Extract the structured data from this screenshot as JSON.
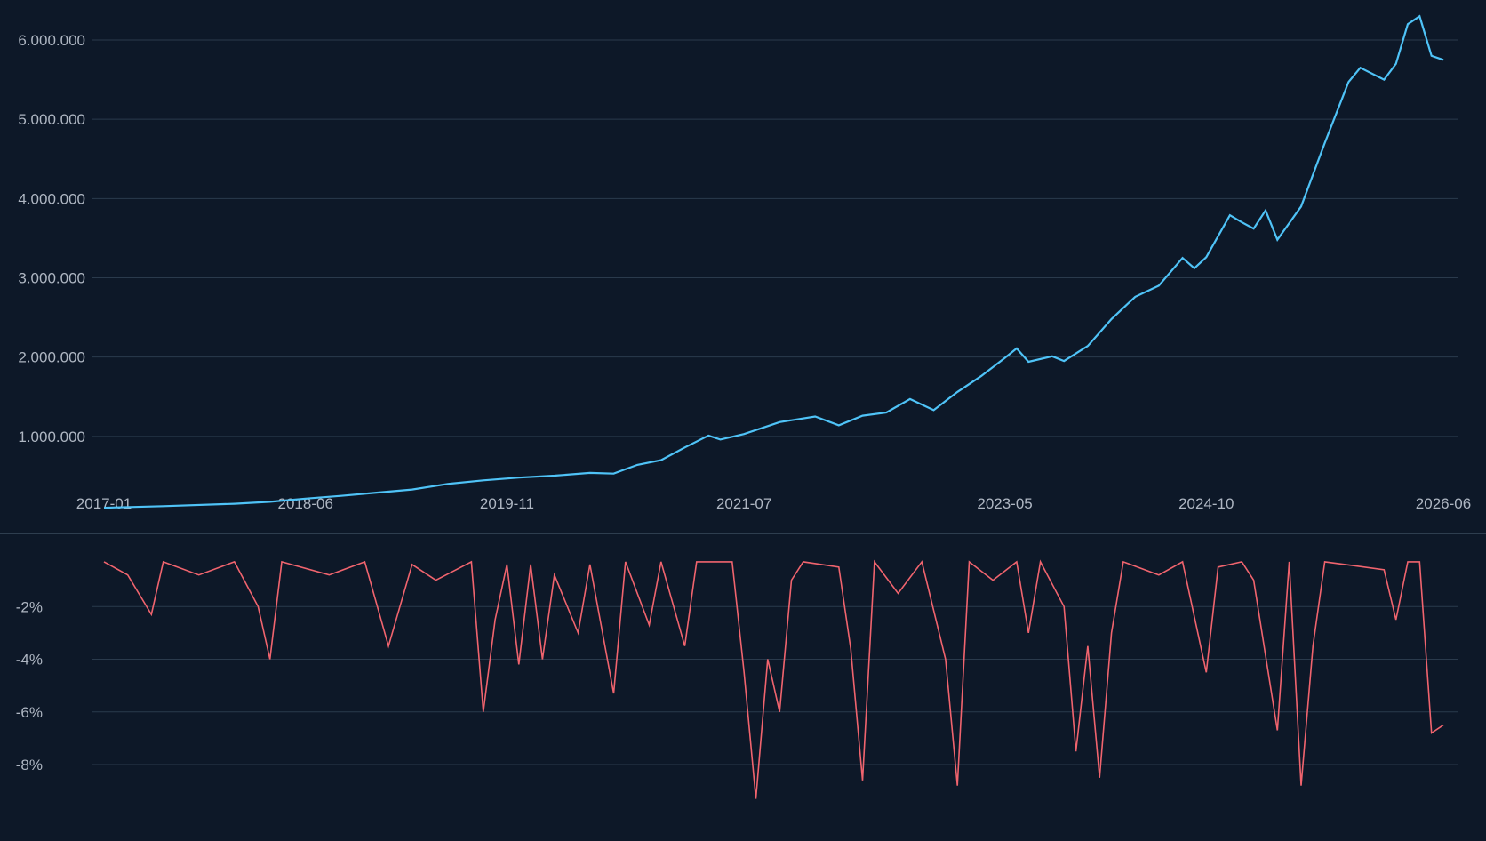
{
  "colors": {
    "background": "#0d1828",
    "grid": "#2a3a4c",
    "tick_text": "#aeb6c2",
    "equity_line": "#4fc3f7",
    "drawdown_line": "#f0646e"
  },
  "chart_data": [
    {
      "type": "line",
      "title": "",
      "xlabel": "",
      "ylabel": "",
      "legend": "none",
      "grid": "horizontal",
      "xlim": [
        "2017-01",
        "2026-06"
      ],
      "ylim": [
        0,
        6300000
      ],
      "x_ticks": [
        "2017-01",
        "2018-06",
        "2019-11",
        "2021-07",
        "2023-05",
        "2024-10",
        "2026-06"
      ],
      "y_ticks": [
        {
          "value": 1000000,
          "label": "1.000.000"
        },
        {
          "value": 2000000,
          "label": "2.000.000"
        },
        {
          "value": 3000000,
          "label": "3.000.000"
        },
        {
          "value": 4000000,
          "label": "4.000.000"
        },
        {
          "value": 5000000,
          "label": "5.000.000"
        },
        {
          "value": 6000000,
          "label": "6.000.000"
        }
      ],
      "series": [
        {
          "color": "#4fc3f7",
          "points": [
            [
              "2017-01",
              100000
            ],
            [
              "2017-06",
              120000
            ],
            [
              "2017-12",
              150000
            ],
            [
              "2018-03",
              175000
            ],
            [
              "2018-06",
              215000
            ],
            [
              "2018-09",
              250000
            ],
            [
              "2018-12",
              290000
            ],
            [
              "2019-03",
              330000
            ],
            [
              "2019-06",
              400000
            ],
            [
              "2019-09",
              445000
            ],
            [
              "2019-12",
              480000
            ],
            [
              "2020-03",
              505000
            ],
            [
              "2020-06",
              540000
            ],
            [
              "2020-08",
              530000
            ],
            [
              "2020-10",
              640000
            ],
            [
              "2020-12",
              700000
            ],
            [
              "2021-02",
              860000
            ],
            [
              "2021-04",
              1010000
            ],
            [
              "2021-05",
              960000
            ],
            [
              "2021-07",
              1030000
            ],
            [
              "2021-10",
              1180000
            ],
            [
              "2022-01",
              1250000
            ],
            [
              "2022-03",
              1140000
            ],
            [
              "2022-05",
              1260000
            ],
            [
              "2022-07",
              1300000
            ],
            [
              "2022-09",
              1470000
            ],
            [
              "2022-11",
              1330000
            ],
            [
              "2023-01",
              1560000
            ],
            [
              "2023-03",
              1760000
            ],
            [
              "2023-05",
              1990000
            ],
            [
              "2023-06",
              2110000
            ],
            [
              "2023-07",
              1940000
            ],
            [
              "2023-09",
              2010000
            ],
            [
              "2023-10",
              1950000
            ],
            [
              "2023-12",
              2140000
            ],
            [
              "2024-02",
              2480000
            ],
            [
              "2024-04",
              2760000
            ],
            [
              "2024-06",
              2900000
            ],
            [
              "2024-08",
              3250000
            ],
            [
              "2024-09",
              3120000
            ],
            [
              "2024-10",
              3260000
            ],
            [
              "2024-12",
              3790000
            ],
            [
              "2025-01",
              3700000
            ],
            [
              "2025-02",
              3620000
            ],
            [
              "2025-03",
              3850000
            ],
            [
              "2025-04",
              3480000
            ],
            [
              "2025-06",
              3900000
            ],
            [
              "2025-08",
              4700000
            ],
            [
              "2025-10",
              5470000
            ],
            [
              "2025-11",
              5650000
            ],
            [
              "2026-01",
              5500000
            ],
            [
              "2026-02",
              5700000
            ],
            [
              "2026-03",
              6200000
            ],
            [
              "2026-04",
              6300000
            ],
            [
              "2026-05",
              5800000
            ],
            [
              "2026-06",
              5750000
            ]
          ]
        }
      ]
    },
    {
      "type": "line",
      "title": "",
      "xlabel": "",
      "ylabel": "",
      "legend": "none",
      "grid": "horizontal",
      "xlim": [
        "2017-01",
        "2026-06"
      ],
      "ylim": [
        -10,
        0
      ],
      "y_ticks": [
        {
          "value": -2,
          "label": "-2%"
        },
        {
          "value": -4,
          "label": "-4%"
        },
        {
          "value": -6,
          "label": "-6%"
        },
        {
          "value": -8,
          "label": "-8%"
        }
      ],
      "series": [
        {
          "color": "#f0646e",
          "points": [
            [
              "2017-01",
              -0.3
            ],
            [
              "2017-03",
              -0.8
            ],
            [
              "2017-05",
              -2.3
            ],
            [
              "2017-06",
              -0.3
            ],
            [
              "2017-09",
              -0.8
            ],
            [
              "2017-12",
              -0.3
            ],
            [
              "2018-02",
              -2.0
            ],
            [
              "2018-03",
              -4.0
            ],
            [
              "2018-04",
              -0.3
            ],
            [
              "2018-08",
              -0.8
            ],
            [
              "2018-11",
              -0.3
            ],
            [
              "2019-01",
              -3.5
            ],
            [
              "2019-03",
              -0.4
            ],
            [
              "2019-05",
              -1.0
            ],
            [
              "2019-08",
              -0.3
            ],
            [
              "2019-09",
              -6.0
            ],
            [
              "2019-10",
              -2.5
            ],
            [
              "2019-11",
              -0.4
            ],
            [
              "2019-12",
              -4.2
            ],
            [
              "2020-01",
              -0.4
            ],
            [
              "2020-02",
              -4.0
            ],
            [
              "2020-03",
              -0.8
            ],
            [
              "2020-05",
              -3.0
            ],
            [
              "2020-06",
              -0.4
            ],
            [
              "2020-08",
              -5.3
            ],
            [
              "2020-09",
              -0.3
            ],
            [
              "2020-11",
              -2.7
            ],
            [
              "2020-12",
              -0.3
            ],
            [
              "2021-02",
              -3.5
            ],
            [
              "2021-03",
              -0.3
            ],
            [
              "2021-06",
              -0.3
            ],
            [
              "2021-07",
              -4.5
            ],
            [
              "2021-08",
              -9.3
            ],
            [
              "2021-09",
              -4.0
            ],
            [
              "2021-10",
              -6.0
            ],
            [
              "2021-11",
              -1.0
            ],
            [
              "2021-12",
              -0.3
            ],
            [
              "2022-03",
              -0.5
            ],
            [
              "2022-04",
              -3.6
            ],
            [
              "2022-05",
              -8.6
            ],
            [
              "2022-06",
              -0.3
            ],
            [
              "2022-08",
              -1.5
            ],
            [
              "2022-10",
              -0.3
            ],
            [
              "2022-12",
              -4.0
            ],
            [
              "2023-01",
              -8.8
            ],
            [
              "2023-02",
              -0.3
            ],
            [
              "2023-04",
              -1.0
            ],
            [
              "2023-06",
              -0.3
            ],
            [
              "2023-07",
              -3.0
            ],
            [
              "2023-08",
              -0.3
            ],
            [
              "2023-10",
              -2.0
            ],
            [
              "2023-11",
              -7.5
            ],
            [
              "2023-12",
              -3.5
            ],
            [
              "2024-01",
              -8.5
            ],
            [
              "2024-02",
              -3.0
            ],
            [
              "2024-03",
              -0.3
            ],
            [
              "2024-06",
              -0.8
            ],
            [
              "2024-08",
              -0.3
            ],
            [
              "2024-10",
              -4.5
            ],
            [
              "2024-11",
              -0.5
            ],
            [
              "2025-01",
              -0.3
            ],
            [
              "2025-02",
              -1.0
            ],
            [
              "2025-04",
              -6.7
            ],
            [
              "2025-05",
              -0.3
            ],
            [
              "2025-06",
              -8.8
            ],
            [
              "2025-07",
              -3.5
            ],
            [
              "2025-08",
              -0.3
            ],
            [
              "2026-01",
              -0.6
            ],
            [
              "2026-02",
              -2.5
            ],
            [
              "2026-03",
              -0.3
            ],
            [
              "2026-04",
              -0.3
            ],
            [
              "2026-05",
              -6.8
            ],
            [
              "2026-06",
              -6.5
            ]
          ]
        }
      ]
    }
  ]
}
